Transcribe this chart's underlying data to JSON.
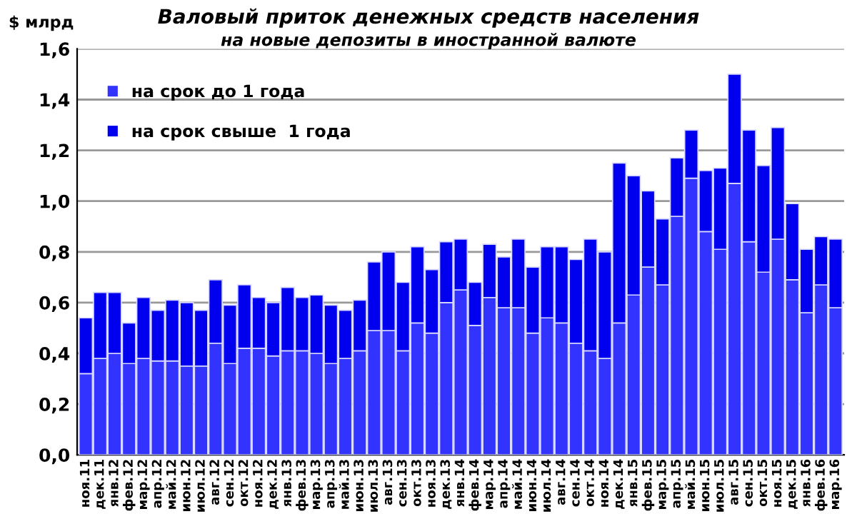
{
  "chart_data": {
    "type": "bar",
    "stacked": true,
    "title": "Валовый приток денежных средств населения",
    "subtitle": "на новые депозиты в иностранной валюте",
    "ylabel": "$ млрд",
    "categories": [
      "ноя.11",
      "дек.11",
      "янв.12",
      "фев.12",
      "мар.12",
      "апр.12",
      "май.12",
      "июн.12",
      "июл.12",
      "авг.12",
      "сен.12",
      "окт.12",
      "ноя.12",
      "дек.12",
      "янв.13",
      "фев.13",
      "мар.13",
      "апр.13",
      "май.13",
      "июн.13",
      "июл.13",
      "авг.13",
      "сен.13",
      "окт.13",
      "ноя.13",
      "дек.13",
      "янв.14",
      "фев.14",
      "мар.14",
      "апр.14",
      "май.14",
      "июн.14",
      "июл.14",
      "авг.14",
      "сен.14",
      "окт.14",
      "ноя.14",
      "дек.14",
      "янв.15",
      "фев.15",
      "мар.15",
      "апр.15",
      "май.15",
      "июн.15",
      "июл.15",
      "авг.15",
      "сен.15",
      "окт.15",
      "ноя.15",
      "дек.15",
      "янв.16",
      "фев.16",
      "мар.16"
    ],
    "series": [
      {
        "name": "на срок до 1 года",
        "color": "#3333ff",
        "values": [
          0.32,
          0.38,
          0.4,
          0.36,
          0.38,
          0.37,
          0.37,
          0.35,
          0.35,
          0.44,
          0.36,
          0.42,
          0.42,
          0.39,
          0.41,
          0.41,
          0.4,
          0.36,
          0.38,
          0.41,
          0.49,
          0.49,
          0.41,
          0.52,
          0.48,
          0.6,
          0.65,
          0.51,
          0.62,
          0.58,
          0.58,
          0.48,
          0.54,
          0.52,
          0.44,
          0.41,
          0.38,
          0.52,
          0.63,
          0.74,
          0.67,
          0.94,
          1.09,
          0.88,
          0.81,
          1.07,
          0.84,
          0.72,
          0.85,
          0.69,
          0.56,
          0.67,
          0.58
        ]
      },
      {
        "name": "на срок свыше  1 года",
        "color": "#0000ee",
        "values": [
          0.22,
          0.26,
          0.24,
          0.16,
          0.24,
          0.2,
          0.24,
          0.25,
          0.22,
          0.25,
          0.23,
          0.25,
          0.2,
          0.21,
          0.25,
          0.21,
          0.23,
          0.23,
          0.19,
          0.2,
          0.27,
          0.31,
          0.27,
          0.3,
          0.25,
          0.24,
          0.2,
          0.17,
          0.21,
          0.2,
          0.27,
          0.26,
          0.28,
          0.3,
          0.33,
          0.44,
          0.42,
          0.63,
          0.47,
          0.3,
          0.26,
          0.23,
          0.19,
          0.24,
          0.32,
          0.43,
          0.44,
          0.42,
          0.44,
          0.3,
          0.25,
          0.19,
          0.27
        ]
      }
    ],
    "ylim": [
      0,
      1.6
    ],
    "yticks": [
      {
        "value": 0,
        "label": "0,0"
      },
      {
        "value": 0.2,
        "label": "0,2"
      },
      {
        "value": 0.4,
        "label": "0,4"
      },
      {
        "value": 0.6,
        "label": "0,6"
      },
      {
        "value": 0.8,
        "label": "0,8"
      },
      {
        "value": 1.0,
        "label": "1,0"
      },
      {
        "value": 1.2,
        "label": "1,2"
      },
      {
        "value": 1.4,
        "label": "1,4"
      },
      {
        "value": 1.6,
        "label": "1,6"
      }
    ],
    "grid": "y",
    "legend": "top left"
  }
}
